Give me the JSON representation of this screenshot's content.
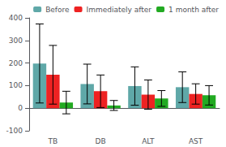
{
  "chart_data": {
    "type": "bar",
    "categories": [
      "TB",
      "DB",
      "ALT",
      "AST"
    ],
    "series": [
      {
        "name": "Before",
        "color": "#5fa8a8",
        "values": [
          198,
          107,
          98,
          93
        ],
        "errors": [
          175,
          88,
          85,
          68
        ]
      },
      {
        "name": "Immediately after",
        "color": "#ee2222",
        "values": [
          148,
          75,
          60,
          63
        ],
        "errors": [
          130,
          72,
          65,
          45
        ]
      },
      {
        "name": "1 month after",
        "color": "#22aa22",
        "values": [
          25,
          12,
          43,
          57
        ],
        "errors": [
          50,
          22,
          35,
          43
        ]
      }
    ],
    "ylim": [
      -100,
      400
    ],
    "yticks": [
      -100,
      0,
      100,
      200,
      300,
      400
    ],
    "grid": false,
    "legend": "upper right"
  }
}
